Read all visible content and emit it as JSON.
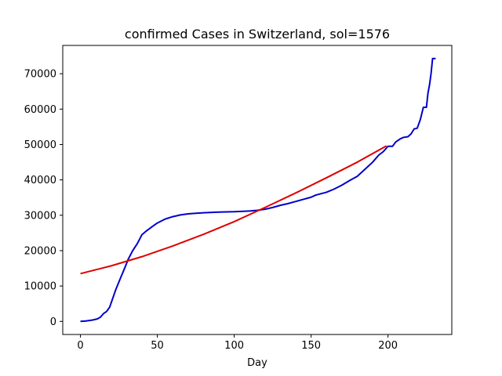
{
  "chart_data": {
    "type": "line",
    "title": "confirmed Cases in Switzerland, sol=1576",
    "xlabel": "Day",
    "ylabel": "",
    "xlim": [
      -11.5,
      241.5
    ],
    "ylim": [
      -3700,
      78000
    ],
    "xticks": [
      0,
      50,
      100,
      150,
      200
    ],
    "yticks": [
      0,
      10000,
      20000,
      30000,
      40000,
      50000,
      60000,
      70000
    ],
    "grid": false,
    "series": [
      {
        "color": "#0000cc",
        "x": [
          0,
          3,
          5,
          8,
          11,
          13,
          15,
          17,
          19,
          21,
          23,
          26,
          29,
          31,
          34,
          37,
          40,
          43,
          47,
          50,
          55,
          60,
          65,
          70,
          80,
          90,
          100,
          110,
          115,
          120,
          125,
          130,
          135,
          140,
          145,
          150,
          153,
          160,
          165,
          170,
          175,
          180,
          185,
          190,
          194,
          197,
          200,
          203,
          205,
          208,
          210,
          213,
          215,
          217,
          219,
          221,
          223,
          224,
          225,
          226,
          227,
          228,
          229,
          230,
          231
        ],
        "values": [
          0,
          100,
          200,
          400,
          700,
          1200,
          2200,
          2800,
          4000,
          6500,
          9000,
          12200,
          15300,
          17500,
          20000,
          22000,
          24500,
          25600,
          26900,
          27800,
          28900,
          29600,
          30100,
          30400,
          30700,
          30900,
          31000,
          31200,
          31400,
          31700,
          32200,
          32800,
          33300,
          33900,
          34500,
          35100,
          35700,
          36500,
          37400,
          38500,
          39800,
          41000,
          43000,
          45000,
          47000,
          48000,
          49500,
          49500,
          50700,
          51600,
          52000,
          52200,
          53000,
          54400,
          54600,
          57000,
          60500,
          60500,
          60500,
          64500,
          66800,
          70000,
          74300,
          74300,
          74300
        ]
      },
      {
        "color": "#dd0000",
        "x": [
          0,
          20,
          40,
          60,
          80,
          100,
          120,
          140,
          160,
          180,
          199
        ],
        "values": [
          13500,
          15700,
          18300,
          21300,
          24600,
          28200,
          32200,
          36300,
          40600,
          45000,
          49600
        ]
      }
    ]
  }
}
